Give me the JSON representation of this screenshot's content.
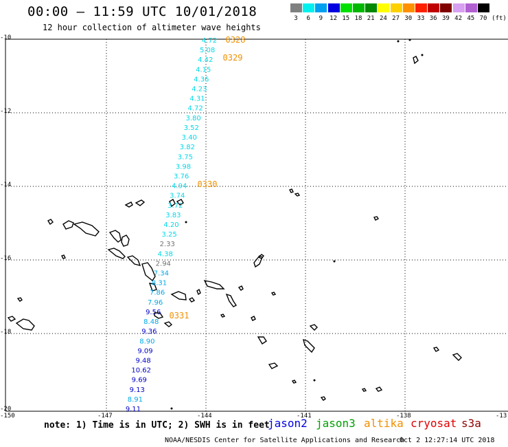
{
  "header": {
    "title": "00:00 – 11:59 UTC 10/01/2018",
    "subtitle": "12 hour collection of altimeter wave heights"
  },
  "legend": {
    "unit": "(ft)",
    "bins": [
      {
        "label": "3",
        "color": "#808080"
      },
      {
        "label": "6",
        "color": "#00f0f0"
      },
      {
        "label": "9",
        "color": "#00a0f0"
      },
      {
        "label": "12",
        "color": "#0000e0"
      },
      {
        "label": "15",
        "color": "#00e000"
      },
      {
        "label": "18",
        "color": "#00b800"
      },
      {
        "label": "21",
        "color": "#008800"
      },
      {
        "label": "24",
        "color": "#ffff00"
      },
      {
        "label": "27",
        "color": "#ffd000"
      },
      {
        "label": "30",
        "color": "#ff9000"
      },
      {
        "label": "33",
        "color": "#ff2000"
      },
      {
        "label": "36",
        "color": "#c00000"
      },
      {
        "label": "39",
        "color": "#800000"
      },
      {
        "label": "42",
        "color": "#d8a0f0"
      },
      {
        "label": "45",
        "color": "#b060d0"
      },
      {
        "label": "70",
        "color": "#000000"
      }
    ]
  },
  "axes": {
    "lat_labels": [
      "-10",
      "-12",
      "-14",
      "-16",
      "-18",
      "-20"
    ],
    "lon_labels": [
      "-150",
      "-147",
      "-144",
      "-141",
      "-138",
      "-13"
    ]
  },
  "track": {
    "times": [
      {
        "label": "0328",
        "color": "#f09000"
      },
      {
        "label": "0329",
        "color": "#f09000"
      },
      {
        "label": "0330",
        "color": "#f09000"
      },
      {
        "label": "0331",
        "color": "#f09000"
      }
    ],
    "values": [
      {
        "v": "4.72",
        "color": "#00d8e8"
      },
      {
        "v": "5.08",
        "color": "#00d8e8"
      },
      {
        "v": "4.42",
        "color": "#00d8e8"
      },
      {
        "v": "4.15",
        "color": "#00d8e8"
      },
      {
        "v": "4.36",
        "color": "#00d8e8"
      },
      {
        "v": "4.23",
        "color": "#00d8e8"
      },
      {
        "v": "4.31",
        "color": "#00d8e8"
      },
      {
        "v": "4.72",
        "color": "#00d8e8"
      },
      {
        "v": "3.80",
        "color": "#00d8e8"
      },
      {
        "v": "3.52",
        "color": "#00d8e8"
      },
      {
        "v": "3.40",
        "color": "#00d8e8"
      },
      {
        "v": "3.82",
        "color": "#00d8e8"
      },
      {
        "v": "3.75",
        "color": "#00d8e8"
      },
      {
        "v": "3.98",
        "color": "#00d8e8"
      },
      {
        "v": "3.76",
        "color": "#00d8e8"
      },
      {
        "v": "4.94",
        "color": "#00d8e8"
      },
      {
        "v": "3.74",
        "color": "#00d8e8"
      },
      {
        "v": "3.72",
        "color": "#00d8e8"
      },
      {
        "v": "3.83",
        "color": "#00d8e8"
      },
      {
        "v": "4.20",
        "color": "#00d8e8"
      },
      {
        "v": "3.25",
        "color": "#00d8e8"
      },
      {
        "v": "2.33",
        "color": "#707070"
      },
      {
        "v": "4.38",
        "color": "#00d8e8"
      },
      {
        "v": "2.94",
        "color": "#707070"
      },
      {
        "v": "7.34",
        "color": "#00a8e8"
      },
      {
        "v": "8.31",
        "color": "#00a8e8"
      },
      {
        "v": "7.86",
        "color": "#00a8e8"
      },
      {
        "v": "7.96",
        "color": "#00a8e8"
      },
      {
        "v": "9.56",
        "color": "#0000c8"
      },
      {
        "v": "8.48",
        "color": "#00a8e8"
      },
      {
        "v": "9.36",
        "color": "#0000c8"
      },
      {
        "v": "8.90",
        "color": "#00a8e8"
      },
      {
        "v": "9.09",
        "color": "#0000c8"
      },
      {
        "v": "9.48",
        "color": "#0000c8"
      },
      {
        "v": "10.62",
        "color": "#0000c8"
      },
      {
        "v": "9.69",
        "color": "#0000c8"
      },
      {
        "v": "9.13",
        "color": "#0000c8"
      },
      {
        "v": "8.91",
        "color": "#00a8e8"
      },
      {
        "v": "9.11",
        "color": "#0000c8"
      }
    ]
  },
  "footer": {
    "note": "note: 1) Time is in UTC; 2) SWH is in feet",
    "satellites": [
      {
        "name": "jason2",
        "color": "#0000e0"
      },
      {
        "name": "jason3",
        "color": "#00a000"
      },
      {
        "name": "altika",
        "color": "#f09000"
      },
      {
        "name": "cryosat",
        "color": "#e00000"
      },
      {
        "name": "s3a",
        "color": "#900000"
      }
    ],
    "credit": "NOAA/NESDIS Center for Satellite Applications and Research",
    "timestamp": "Oct  2 12:27:14 UTC 2018"
  }
}
